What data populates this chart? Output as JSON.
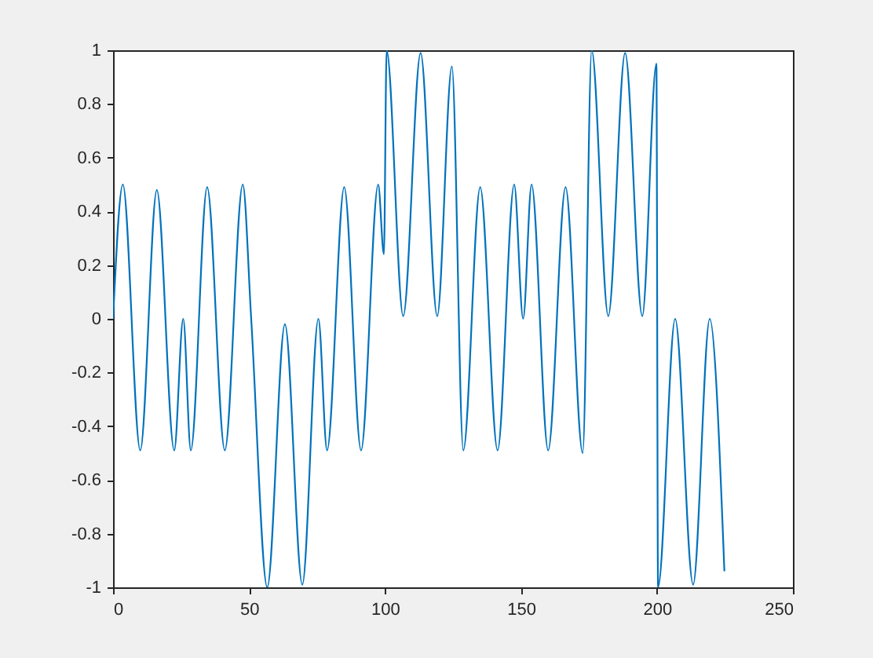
{
  "chart_data": {
    "type": "line",
    "x": [
      0,
      3.6,
      10,
      16.1,
      22.5,
      25.8,
      28.6,
      34.6,
      41.1,
      47.7,
      50.8,
      56.7,
      63.2,
      69.6,
      75.5,
      78.7,
      85,
      91.2,
      97.5,
      99.6,
      100.6,
      106.7,
      113.1,
      119.2,
      124.6,
      128.8,
      135,
      141.4,
      147.5,
      150.8,
      153.9,
      160,
      166.4,
      172.7,
      176,
      182.1,
      188.3,
      194.6,
      199.8,
      200.4,
      206.7,
      213.3,
      219.4,
      224.8
    ],
    "series": [
      {
        "color": "#0072bd",
        "values": [
          0,
          0.5,
          -0.49,
          0.48,
          -0.49,
          0,
          -0.49,
          0.49,
          -0.49,
          0.5,
          0,
          -1,
          -0.02,
          -0.99,
          0,
          -0.49,
          0.49,
          -0.49,
          0.5,
          0.24,
          1,
          0.01,
          0.99,
          0.01,
          0.94,
          -0.49,
          0.49,
          -0.49,
          0.5,
          0,
          0.5,
          -0.49,
          0.49,
          -0.5,
          1,
          0.01,
          0.99,
          0.01,
          0.95,
          -1,
          0,
          -0.99,
          0,
          -0.94
        ]
      }
    ],
    "xlim": [
      0,
      250
    ],
    "ylim": [
      -1,
      1
    ],
    "xticks": [
      0,
      50,
      100,
      150,
      200,
      250
    ],
    "yticks": [
      -1,
      -0.8,
      -0.6,
      -0.4,
      -0.2,
      0,
      0.2,
      0.4,
      0.6,
      0.8,
      1
    ],
    "grid": false
  }
}
